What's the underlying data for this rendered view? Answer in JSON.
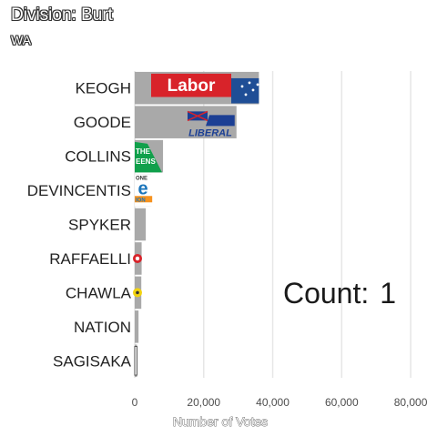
{
  "title": "Division: Burt",
  "subtitle": "WA",
  "count_label": "Count:",
  "count_value": "1",
  "logo_text": {
    "labor": "Labor",
    "liberal": "LIBERAL",
    "greens_top": "THE",
    "greens_bottom": "EENS",
    "onenation_top": "ONE",
    "onenation_mid": "e",
    "onenation_bottom": "ION"
  },
  "colors": {
    "bar": "#a9a9a9",
    "grid": "#e6e6e6",
    "labor_red": "#d8232a",
    "labor_blue": "#1f4e96",
    "liberal_blue": "#1c3f94",
    "greens_green": "#10a04b",
    "onenation_blue": "#1b75bb",
    "onenation_orange": "#f6921e",
    "raffaelli_red": "#d8232a",
    "chawla_yellow": "#f2d30f"
  },
  "chart_data": {
    "type": "bar",
    "orientation": "horizontal",
    "categories": [
      "KEOGH",
      "GOODE",
      "COLLINS",
      "DEVINCENTIS",
      "SPYKER",
      "RAFFAELLI",
      "CHAWLA",
      "NATION",
      "SAGISAKA"
    ],
    "values": [
      36000,
      29500,
      8200,
      4800,
      3200,
      2000,
      1900,
      1100,
      650
    ],
    "xlabel": "Number of Votes",
    "xlim": [
      0,
      85000
    ],
    "xticks": [
      0,
      20000,
      40000,
      60000,
      80000
    ],
    "xtick_labels": [
      "0",
      "20,000",
      "40,000",
      "60,000",
      "80,000"
    ],
    "grid": true
  }
}
